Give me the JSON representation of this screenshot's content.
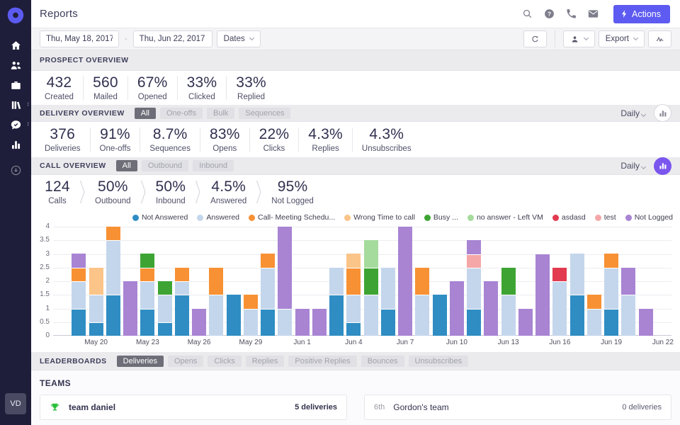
{
  "app": {
    "title": "Reports"
  },
  "colors": {
    "sidebar_bg": "#1f1e3a",
    "accent": "#5d5bf1",
    "chart_button_accent": "#7a55ee",
    "trophy_green": "#2abf3c"
  },
  "sidebar": {
    "avatar": "VD",
    "items": [
      {
        "icon": "home",
        "dots": false
      },
      {
        "icon": "users",
        "dots": false
      },
      {
        "icon": "briefcase",
        "dots": false
      },
      {
        "icon": "library",
        "dots": true
      },
      {
        "icon": "chat-check",
        "dots": true
      },
      {
        "icon": "bar-chart",
        "dots": false
      }
    ],
    "secondary_item": {
      "icon": "download"
    }
  },
  "topbar": {
    "icons": [
      "search",
      "help",
      "phone",
      "mail"
    ],
    "actions_button": "Actions"
  },
  "toolbar": {
    "date_from": "Thu, May 18, 2017",
    "date_to": "Thu, Jun 22, 2017",
    "dates_button": "Dates",
    "export_button": "Export"
  },
  "sections": {
    "prospect": {
      "title": "PROSPECT OVERVIEW",
      "stats": [
        {
          "value": "432",
          "label": "Created"
        },
        {
          "value": "560",
          "label": "Mailed"
        },
        {
          "value": "67%",
          "label": "Opened"
        },
        {
          "value": "33%",
          "label": "Clicked"
        },
        {
          "value": "33%",
          "label": "Replied"
        }
      ]
    },
    "delivery": {
      "title": "DELIVERY OVERVIEW",
      "tabs": [
        "All",
        "One-offs",
        "Bulk",
        "Sequences"
      ],
      "active_tab": "All",
      "period": "Daily",
      "stats": [
        {
          "value": "376",
          "label": "Deliveries"
        },
        {
          "value": "91%",
          "label": "One-offs"
        },
        {
          "value": "8.7%",
          "label": "Sequences"
        },
        {
          "value": "83%",
          "label": "Opens"
        },
        {
          "value": "22%",
          "label": "Clicks"
        },
        {
          "value": "4.3%",
          "label": "Replies"
        },
        {
          "value": "4.3%",
          "label": "Unsubscribes"
        }
      ]
    },
    "call": {
      "title": "CALL OVERVIEW",
      "tabs": [
        "All",
        "Outbound",
        "Inbound"
      ],
      "active_tab": "All",
      "period": "Daily",
      "stats": [
        {
          "value": "124",
          "label": "Calls"
        },
        {
          "value": "50%",
          "label": "Outbound"
        },
        {
          "value": "50%",
          "label": "Inbound"
        },
        {
          "value": "4.5%",
          "label": "Answered"
        },
        {
          "value": "95%",
          "label": "Not Logged"
        }
      ]
    }
  },
  "chart_data": {
    "type": "bar",
    "stacked": true,
    "grid": true,
    "legend_position": "top",
    "ylim": [
      0,
      4
    ],
    "yticks": [
      0,
      0.5,
      1,
      1.5,
      2,
      2.5,
      3,
      3.5,
      4
    ],
    "categories": [
      "May 18",
      "May 19",
      "May 20",
      "May 21",
      "May 22",
      "May 23",
      "May 24",
      "May 25",
      "May 26",
      "May 27",
      "May 28",
      "May 29",
      "May 30",
      "May 31",
      "Jun 1",
      "Jun 2",
      "Jun 3",
      "Jun 4",
      "Jun 5",
      "Jun 6",
      "Jun 7",
      "Jun 8",
      "Jun 9",
      "Jun 10",
      "Jun 11",
      "Jun 12",
      "Jun 13",
      "Jun 14",
      "Jun 15",
      "Jun 16",
      "Jun 17",
      "Jun 18",
      "Jun 19",
      "Jun 20",
      "Jun 21",
      "Jun 22"
    ],
    "xtick_labels": [
      "May 20",
      "May 23",
      "May 26",
      "May 29",
      "Jun 1",
      "Jun 4",
      "Jun 7",
      "Jun 10",
      "Jun 13",
      "Jun 16",
      "Jun 19",
      "Jun 22"
    ],
    "xtick_every": 3,
    "xtick_start_index": 2,
    "series": [
      {
        "name": "Not Answered",
        "color": "#2f8dc3",
        "values": [
          0,
          1,
          0.5,
          1.5,
          0,
          1,
          0.5,
          1.5,
          0,
          0,
          1.5,
          0,
          1,
          0,
          0,
          0,
          1.5,
          0.5,
          0,
          1,
          0,
          0,
          1.5,
          0,
          1,
          0,
          0,
          0,
          0,
          0,
          1.5,
          0,
          1,
          0,
          0,
          0
        ]
      },
      {
        "name": "Answered",
        "color": "#c4d6ec",
        "values": [
          0,
          1,
          1,
          2,
          0,
          1,
          1,
          0.5,
          0,
          1.5,
          0,
          1,
          1.5,
          1,
          0,
          0,
          1,
          1,
          1.5,
          1.5,
          0,
          1.5,
          0,
          0,
          1.5,
          0,
          1.5,
          0,
          0,
          2,
          1.5,
          1,
          1.5,
          1.5,
          0,
          0
        ]
      },
      {
        "name": "Call- Meeting Schedu...",
        "color": "#f79134",
        "values": [
          0,
          0.5,
          0,
          0.5,
          0,
          0.5,
          0,
          0.5,
          0,
          1,
          0,
          0.5,
          0.5,
          0,
          0,
          0,
          0,
          1,
          0,
          0,
          0,
          1,
          0,
          0,
          0,
          0,
          0,
          0,
          0,
          0,
          0,
          0.5,
          0.5,
          0,
          0,
          0
        ]
      },
      {
        "name": "Wrong Time to call",
        "color": "#fbc488",
        "values": [
          0,
          0,
          1,
          0,
          0,
          0,
          0,
          0,
          0,
          0,
          0,
          0,
          0,
          0,
          0,
          0,
          0,
          0.5,
          0,
          0,
          0,
          0,
          0,
          0,
          0,
          0,
          0,
          0,
          0,
          0,
          0,
          0,
          0,
          0,
          0,
          0
        ]
      },
      {
        "name": "Busy ...",
        "color": "#3da433",
        "values": [
          0,
          0,
          0,
          0,
          0,
          0.5,
          0.5,
          0,
          0,
          0,
          0,
          0,
          0,
          0,
          0,
          0,
          0,
          0,
          1,
          0,
          0,
          0,
          0,
          0,
          0,
          0,
          1,
          0,
          0,
          0,
          0,
          0,
          0,
          0,
          0,
          0
        ]
      },
      {
        "name": "no answer - Left VM",
        "color": "#a6db9e",
        "values": [
          0,
          0,
          0,
          0,
          0,
          0,
          0,
          0,
          0,
          0,
          0,
          0,
          0,
          0,
          0,
          0,
          0,
          0,
          1,
          0,
          0,
          0,
          0,
          0,
          0,
          0,
          0,
          0,
          0,
          0,
          0,
          0,
          0,
          0,
          0,
          0
        ]
      },
      {
        "name": "asdasd",
        "color": "#e23a4f",
        "values": [
          0,
          0,
          0,
          0,
          0,
          0,
          0,
          0,
          0,
          0,
          0,
          0,
          0,
          0,
          0,
          0,
          0,
          0,
          0,
          0,
          0,
          0,
          0,
          0,
          0,
          0,
          0,
          0,
          0,
          0.5,
          0,
          0,
          0,
          0,
          0,
          0
        ]
      },
      {
        "name": "test",
        "color": "#f5a7a7",
        "values": [
          0,
          0,
          0,
          0,
          0,
          0,
          0,
          0,
          0,
          0,
          0,
          0,
          0,
          0,
          0,
          0,
          0,
          0,
          0,
          0,
          0,
          0,
          0,
          0,
          0.5,
          0,
          0,
          0,
          0,
          0,
          0,
          0,
          0,
          0,
          0,
          0
        ]
      },
      {
        "name": "Not Logged",
        "color": "#a884d3",
        "values": [
          0,
          0.5,
          0,
          0,
          2,
          0,
          0,
          0,
          1,
          0,
          0,
          0,
          0,
          3,
          1,
          1,
          0,
          0,
          0,
          0,
          4,
          0,
          0,
          2,
          0.5,
          2,
          0,
          1,
          3,
          0,
          0,
          0,
          0,
          1,
          1,
          0
        ]
      }
    ]
  },
  "leaderboards": {
    "title": "LEADERBOARDS",
    "tabs": [
      "Deliveries",
      "Opens",
      "Clicks",
      "Replies",
      "Positive Replies",
      "Bounces",
      "Unsubscribes"
    ],
    "active_tab": "Deliveries"
  },
  "teams": {
    "title": "TEAMS",
    "cards": [
      {
        "trophy": true,
        "rank": "",
        "name": "team daniel",
        "value": "5 deliveries",
        "highlight": true
      },
      {
        "trophy": false,
        "rank": "6th",
        "name": "Gordon's team",
        "value": "0 deliveries",
        "highlight": false
      }
    ]
  }
}
